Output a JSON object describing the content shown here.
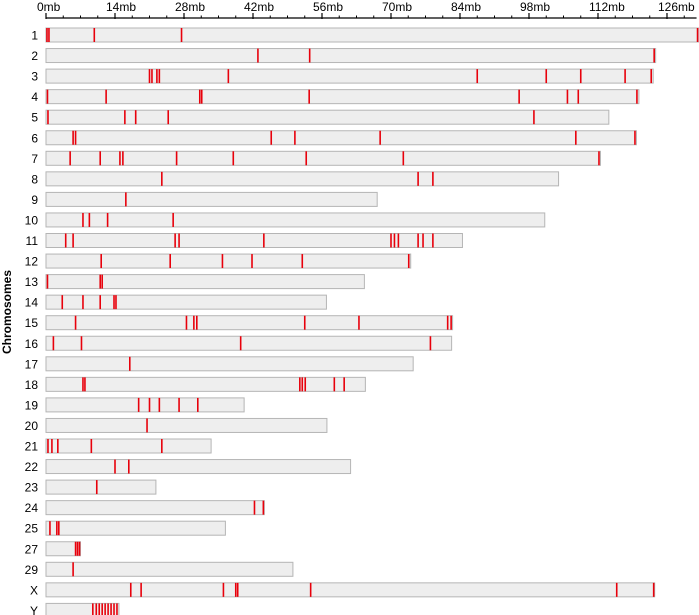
{
  "chart_data": {
    "type": "bar",
    "ylabel": "Chromosomes",
    "x_unit": "mb",
    "xlim": [
      0,
      132
    ],
    "x_ticks": [
      0,
      14,
      28,
      42,
      56,
      70,
      84,
      98,
      112,
      126
    ],
    "x_tick_labels": [
      "0mb",
      "14mb",
      "28mb",
      "42mb",
      "56mb",
      "70mb",
      "84mb",
      "98mb",
      "112mb",
      "126mb"
    ],
    "colors": {
      "bar_fill": "#eeeeee",
      "bar_stroke": "#b5b5b5",
      "marker": "#e8000b",
      "axis": "#000000"
    },
    "chromosomes": [
      {
        "name": "1",
        "length": 132.5,
        "markers": [
          0.2,
          0.6,
          9.8,
          27.5,
          132.2
        ]
      },
      {
        "name": "2",
        "length": 123.7,
        "markers": [
          43.0,
          53.5,
          123.4
        ]
      },
      {
        "name": "3",
        "length": 123.2,
        "markers": [
          21.0,
          21.5,
          22.5,
          23.0,
          37.0,
          87.5,
          101.5,
          108.5,
          117.5,
          122.8
        ]
      },
      {
        "name": "4",
        "length": 120.3,
        "markers": [
          0.3,
          12.2,
          31.2,
          31.6,
          53.4,
          96.0,
          105.8,
          108.0,
          119.9
        ]
      },
      {
        "name": "5",
        "length": 114.2,
        "markers": [
          0.4,
          16.0,
          18.2,
          24.8,
          99.0
        ]
      },
      {
        "name": "6",
        "length": 119.8,
        "markers": [
          5.5,
          6.0,
          45.7,
          50.5,
          67.8,
          107.5,
          119.5
        ]
      },
      {
        "name": "7",
        "length": 112.5,
        "markers": [
          4.9,
          11.0,
          15.0,
          15.6,
          26.5,
          38.0,
          52.8,
          72.5,
          112.2
        ]
      },
      {
        "name": "8",
        "length": 104.0,
        "markers": [
          23.5,
          75.5,
          78.5
        ]
      },
      {
        "name": "9",
        "length": 67.2,
        "markers": [
          16.2
        ]
      },
      {
        "name": "10",
        "length": 101.2,
        "markers": [
          7.5,
          8.8,
          12.5,
          25.8
        ]
      },
      {
        "name": "11",
        "length": 84.5,
        "markers": [
          4.0,
          5.5,
          26.2,
          27.0,
          44.2,
          70.0,
          70.7,
          71.5,
          75.5,
          76.5,
          78.5
        ]
      },
      {
        "name": "12",
        "length": 74.0,
        "markers": [
          11.2,
          25.2,
          35.8,
          41.8,
          52.0,
          73.6
        ]
      },
      {
        "name": "13",
        "length": 64.6,
        "markers": [
          0.3,
          11.0,
          11.4
        ]
      },
      {
        "name": "14",
        "length": 56.9,
        "markers": [
          3.3,
          7.5,
          11.0,
          13.8,
          14.2
        ]
      },
      {
        "name": "15",
        "length": 82.5,
        "markers": [
          6.0,
          28.5,
          30.0,
          30.6,
          52.5,
          63.5,
          81.5,
          82.2
        ]
      },
      {
        "name": "16",
        "length": 82.3,
        "markers": [
          1.5,
          7.2,
          39.5,
          78.0
        ]
      },
      {
        "name": "17",
        "length": 74.5,
        "markers": [
          17.0
        ]
      },
      {
        "name": "18",
        "length": 64.8,
        "markers": [
          7.5,
          7.9,
          51.5,
          52.0,
          52.6,
          58.5,
          60.5
        ]
      },
      {
        "name": "19",
        "length": 40.2,
        "markers": [
          18.8,
          21.0,
          23.0,
          27.0,
          30.8
        ]
      },
      {
        "name": "20",
        "length": 57.0,
        "markers": [
          20.5
        ]
      },
      {
        "name": "21",
        "length": 33.5,
        "markers": [
          0.4,
          1.2,
          2.4,
          9.2,
          23.5
        ]
      },
      {
        "name": "22",
        "length": 61.8,
        "markers": [
          14.0,
          16.8
        ]
      },
      {
        "name": "23",
        "length": 22.3,
        "markers": [
          10.3
        ]
      },
      {
        "name": "24",
        "length": 44.3,
        "markers": [
          42.3,
          44.1
        ]
      },
      {
        "name": "25",
        "length": 36.4,
        "markers": [
          0.8,
          2.2,
          2.6
        ]
      },
      {
        "name": "27",
        "length": 7.0,
        "markers": [
          6.0,
          6.4,
          6.8
        ]
      },
      {
        "name": "29",
        "length": 50.1,
        "markers": [
          5.5
        ]
      },
      {
        "name": "X",
        "length": 123.5,
        "markers": [
          17.2,
          19.3,
          36.0,
          38.5,
          38.9,
          53.7,
          115.8,
          123.3
        ]
      },
      {
        "name": "Y",
        "length": 14.8,
        "markers": [
          9.5,
          10.2,
          10.8,
          11.4,
          12.0,
          12.6,
          13.2,
          13.8,
          14.4
        ]
      }
    ]
  }
}
